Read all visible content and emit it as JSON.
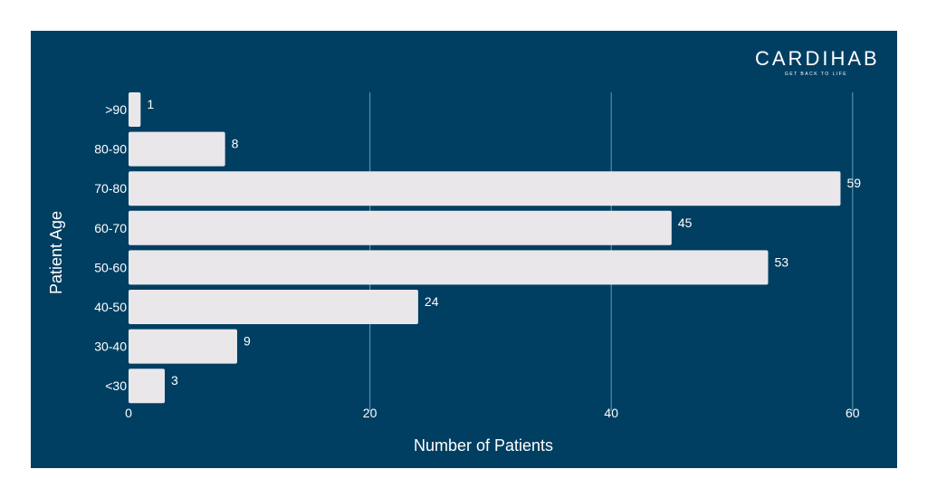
{
  "logo": {
    "word": "CARDIHAB",
    "tagline": "GET BACK TO LIFE"
  },
  "colors": {
    "background": "#003f62",
    "bar": "#e9e7ea",
    "grid": "#4f8fae",
    "text": "#ffffff"
  },
  "chart_data": {
    "type": "bar",
    "orientation": "horizontal",
    "categories": [
      ">90",
      "80-90",
      "70-80",
      "60-70",
      "50-60",
      "40-50",
      "30-40",
      "<30"
    ],
    "values": [
      1,
      8,
      59,
      45,
      53,
      24,
      9,
      3
    ],
    "xlabel": "Number of Patients",
    "ylabel": "Patient Age",
    "xlim": [
      0,
      60
    ],
    "xticks": [
      0,
      20,
      40,
      60
    ],
    "grid": "vertical",
    "legend": "none"
  }
}
